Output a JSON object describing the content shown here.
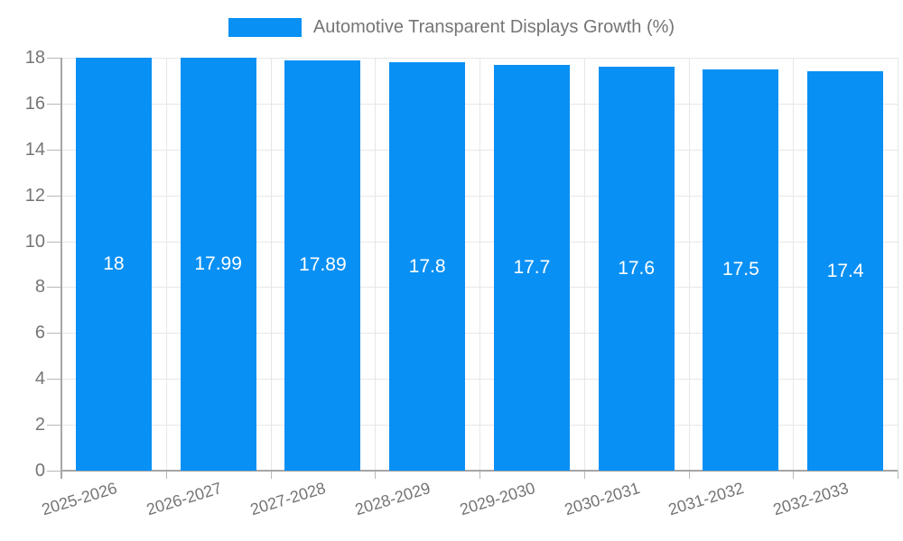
{
  "chart_data": {
    "type": "bar",
    "title": "Automotive Transparent Displays Growth (%)",
    "legend": [
      "Automotive Transparent Displays Growth (%)"
    ],
    "legend_position": "top-center",
    "categories": [
      "2025-2026",
      "2026-2027",
      "2027-2028",
      "2028-2029",
      "2029-2030",
      "2030-2031",
      "2031-2032",
      "2032-2033"
    ],
    "values": [
      18,
      17.99,
      17.89,
      17.8,
      17.7,
      17.6,
      17.5,
      17.4
    ],
    "xlabel": "",
    "ylabel": "",
    "ylim": [
      0,
      18
    ],
    "ytick_step": 2,
    "yticks": [
      0,
      2,
      4,
      6,
      8,
      10,
      12,
      14,
      16,
      18
    ],
    "grid": true,
    "colors": {
      "bar": "#0990f4",
      "value_label": "#ffffff",
      "axis_text": "#757575",
      "gridline": "#e7e7e7",
      "axis_line": "#a6a6a6",
      "tick": "#b8b8b8"
    }
  }
}
